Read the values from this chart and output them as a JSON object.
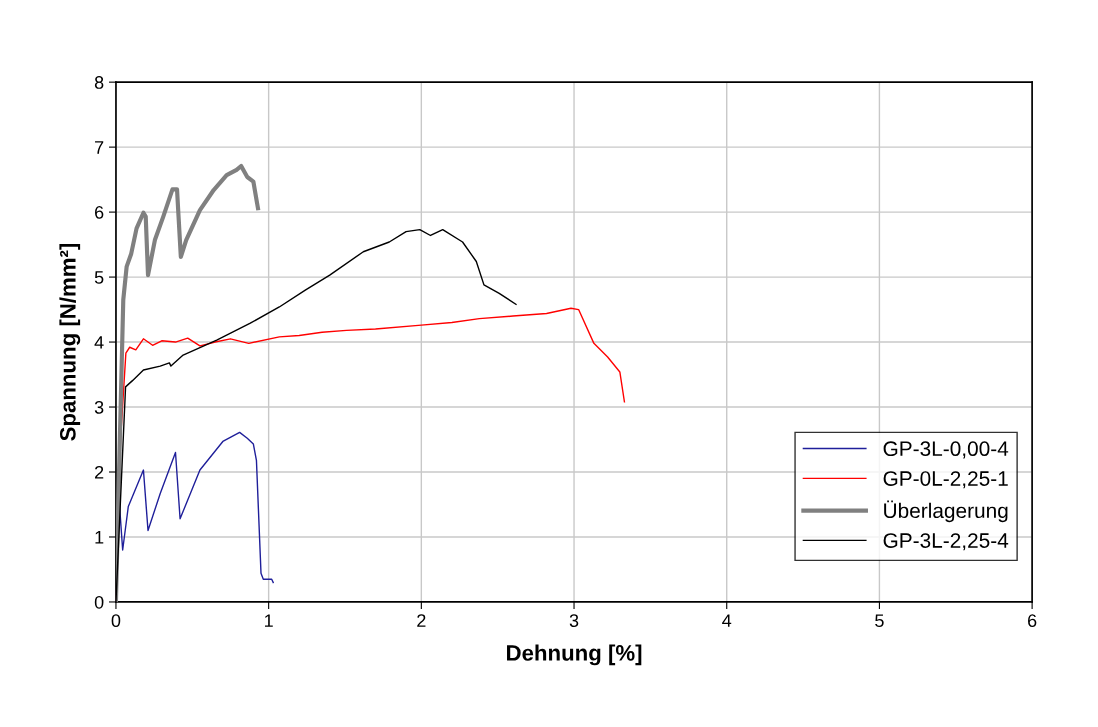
{
  "chart_data": {
    "type": "line",
    "xlabel": "Dehnung [%]",
    "ylabel": "Spannung [N/mm²]",
    "xlim": [
      0,
      6
    ],
    "ylim": [
      0,
      8
    ],
    "xticks": [
      0,
      1,
      2,
      3,
      4,
      5,
      6
    ],
    "yticks": [
      0,
      1,
      2,
      3,
      4,
      5,
      6,
      7,
      8
    ],
    "grid": true,
    "legend": "bottom right",
    "line_style": "solid",
    "series": [
      {
        "name": "GP-3L-0,00-4",
        "color": "#1f1f9a",
        "x": [
          0,
          0.02,
          0.044,
          0.081,
          0.18,
          0.21,
          0.29,
          0.39,
          0.42,
          0.55,
          0.7,
          0.81,
          0.86,
          0.9,
          0.92,
          0.95,
          0.965,
          1.02,
          1.03
        ],
        "values": [
          0,
          1.6,
          0.8,
          1.47,
          2.03,
          1.1,
          1.67,
          2.3,
          1.28,
          2.03,
          2.47,
          2.61,
          2.52,
          2.43,
          2.18,
          0.44,
          0.35,
          0.35,
          0.3
        ]
      },
      {
        "name": "GP-0L-2,25-1",
        "color": "#ff0000",
        "x": [
          0,
          0.03,
          0.065,
          0.09,
          0.13,
          0.18,
          0.24,
          0.3,
          0.39,
          0.47,
          0.55,
          0.65,
          0.75,
          0.87,
          1.07,
          1.2,
          1.35,
          1.51,
          1.7,
          2.0,
          2.2,
          2.38,
          2.6,
          2.82,
          2.98,
          3.03,
          3.13,
          3.22,
          3.3,
          3.33
        ],
        "values": [
          0,
          2.5,
          3.83,
          3.92,
          3.88,
          4.05,
          3.95,
          4.02,
          4.0,
          4.06,
          3.94,
          4.0,
          4.05,
          3.98,
          4.08,
          4.1,
          4.15,
          4.18,
          4.2,
          4.26,
          4.3,
          4.36,
          4.4,
          4.44,
          4.52,
          4.5,
          3.98,
          3.77,
          3.54,
          3.08
        ]
      },
      {
        "name": "Überlagerung",
        "color": "#808080",
        "x": [
          0,
          0.015,
          0.048,
          0.07,
          0.1,
          0.135,
          0.18,
          0.195,
          0.21,
          0.255,
          0.31,
          0.37,
          0.4,
          0.41,
          0.425,
          0.46,
          0.55,
          0.64,
          0.725,
          0.79,
          0.82,
          0.86,
          0.9,
          0.93
        ],
        "values": [
          0,
          1.5,
          4.65,
          5.16,
          5.36,
          5.75,
          5.99,
          5.93,
          5.03,
          5.57,
          5.93,
          6.35,
          6.35,
          5.93,
          5.31,
          5.57,
          6.03,
          6.34,
          6.57,
          6.65,
          6.71,
          6.54,
          6.47,
          6.06
        ]
      },
      {
        "name": "GP-3L-2,25-4",
        "color": "#000000",
        "x": [
          0,
          0.063,
          0.11,
          0.18,
          0.29,
          0.35,
          0.36,
          0.44,
          0.66,
          0.88,
          1.07,
          1.24,
          1.4,
          1.62,
          1.79,
          1.9,
          1.99,
          2.06,
          2.14,
          2.27,
          2.36,
          2.41,
          2.51,
          2.62
        ],
        "values": [
          0,
          3.31,
          3.41,
          3.57,
          3.63,
          3.68,
          3.63,
          3.8,
          4.03,
          4.29,
          4.54,
          4.8,
          5.03,
          5.39,
          5.54,
          5.7,
          5.73,
          5.64,
          5.73,
          5.54,
          5.24,
          4.88,
          4.75,
          4.58
        ]
      }
    ]
  }
}
